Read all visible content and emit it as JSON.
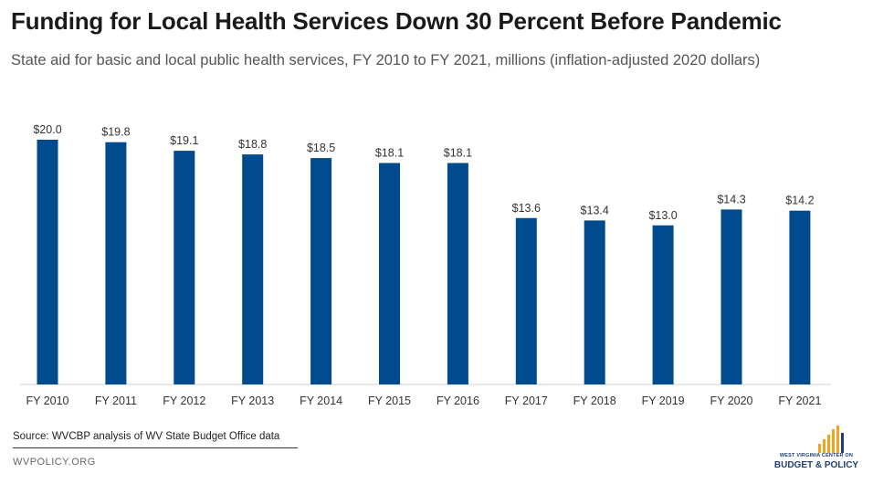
{
  "chart_data": {
    "type": "bar",
    "title": "Funding for Local Health Services Down 30 Percent Before Pandemic",
    "subtitle": "State aid for basic and local public health services, FY 2010 to FY 2021, millions (inflation-adjusted 2020 dollars)",
    "categories": [
      "FY 2010",
      "FY 2011",
      "FY 2012",
      "FY 2013",
      "FY 2014",
      "FY 2015",
      "FY 2016",
      "FY 2017",
      "FY 2018",
      "FY 2019",
      "FY 2020",
      "FY 2021"
    ],
    "values": [
      20.0,
      19.8,
      19.1,
      18.8,
      18.5,
      18.1,
      18.1,
      13.6,
      13.4,
      13.0,
      14.3,
      14.2
    ],
    "data_labels": [
      "$20.0",
      "$19.8",
      "$19.1",
      "$18.8",
      "$18.5",
      "$18.1",
      "$18.1",
      "$13.6",
      "$13.4",
      "$13.0",
      "$14.3",
      "$14.2"
    ],
    "xlabel": "",
    "ylabel": "",
    "ylim": [
      0,
      20
    ],
    "grid": false,
    "bar_color": "#004b8d"
  },
  "footer": {
    "source": "Source: WVCBP analysis of WV State Budget Office data",
    "site": "WVPOLICY.ORG"
  },
  "logo": {
    "line1": "WEST VIRGINIA CENTER ON",
    "line2": "BUDGET & POLICY",
    "bar_color": "#f2a41c"
  }
}
